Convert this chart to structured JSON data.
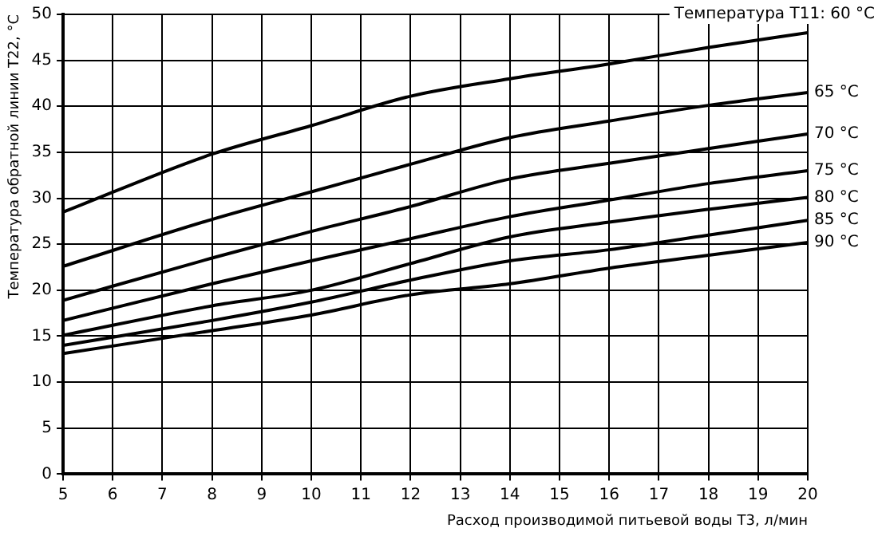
{
  "chart_data": {
    "type": "line",
    "xlabel": "Расход производимой питьевой воды Т3, л/мин",
    "ylabel": "Температура обратной линии Т22, °C",
    "x": [
      5,
      8,
      10,
      12,
      14,
      16,
      18,
      20
    ],
    "xlim": [
      5,
      20
    ],
    "xticks": [
      5,
      6,
      7,
      8,
      9,
      10,
      11,
      12,
      13,
      14,
      15,
      16,
      17,
      18,
      19,
      20
    ],
    "ylim": [
      0,
      50
    ],
    "yticks": [
      0,
      5,
      10,
      15,
      20,
      25,
      30,
      35,
      40,
      45,
      50
    ],
    "grid": true,
    "legend": false,
    "marker": "none",
    "line_style": "solid",
    "series": [
      {
        "name": "Температура Т11: 60 °C",
        "color": "#000000",
        "values": [
          28.5,
          34.8,
          37.9,
          41.1,
          43.0,
          44.6,
          46.4,
          48.0
        ]
      },
      {
        "name": "65 °C",
        "color": "#000000",
        "values": [
          22.6,
          27.7,
          30.7,
          33.7,
          36.6,
          38.4,
          40.1,
          41.5
        ]
      },
      {
        "name": "70 °C",
        "color": "#000000",
        "values": [
          18.9,
          23.5,
          26.4,
          29.1,
          32.1,
          33.8,
          35.4,
          37.0
        ]
      },
      {
        "name": "75 °C",
        "color": "#000000",
        "values": [
          16.7,
          20.7,
          23.2,
          25.6,
          28.0,
          29.8,
          31.6,
          33.0
        ]
      },
      {
        "name": "80 °C",
        "color": "#000000",
        "values": [
          15.1,
          18.3,
          20.0,
          22.9,
          25.8,
          27.4,
          28.8,
          30.1
        ]
      },
      {
        "name": "85 °C",
        "color": "#000000",
        "values": [
          14.0,
          16.7,
          18.7,
          21.1,
          23.2,
          24.4,
          26.0,
          27.6
        ]
      },
      {
        "name": "90 °C",
        "color": "#000000",
        "values": [
          13.1,
          15.6,
          17.3,
          19.5,
          20.7,
          22.4,
          23.8,
          25.2
        ]
      }
    ]
  }
}
